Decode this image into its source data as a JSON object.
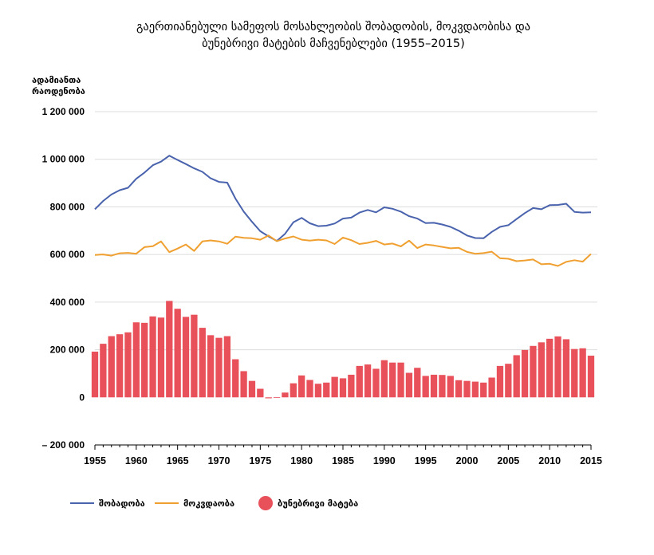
{
  "chart_data": {
    "type": "bar+line",
    "title_lines": [
      "გაერთიანებული სამეფოს მოსახლეობის შობადობის, მოკვდაობისა და",
      "ბუნებრივი მატების მაჩვენებლები (1955–2015)"
    ],
    "ylabel_lines": [
      "ადამიანთა",
      "რაოდენობა"
    ],
    "ylim": [
      -200000,
      1200000
    ],
    "yticks": [
      -200000,
      0,
      200000,
      400000,
      600000,
      800000,
      1000000,
      1200000
    ],
    "ytick_labels": [
      "– 200 000",
      "0",
      "200 000",
      "400 000",
      "600 000",
      "800 000",
      "1 000 000",
      "1 200 000"
    ],
    "xlim": [
      1955,
      2015
    ],
    "xticks": [
      1955,
      1960,
      1965,
      1970,
      1975,
      1980,
      1985,
      1990,
      1995,
      2000,
      2005,
      2010,
      2015
    ],
    "xtick_labels": [
      "1955",
      "1960",
      "1965",
      "1970",
      "1975",
      "1980",
      "1985",
      "1990",
      "1995",
      "2000",
      "2005",
      "2010",
      "2015"
    ],
    "grid": true,
    "legend_position": "bottom-left",
    "colors": {
      "births": "#4a63ad",
      "deaths": "#f0a030",
      "natural": "#e8505a",
      "grid": "#dcdcdc"
    },
    "years": [
      1955,
      1956,
      1957,
      1958,
      1959,
      1960,
      1961,
      1962,
      1963,
      1964,
      1965,
      1966,
      1967,
      1968,
      1969,
      1970,
      1971,
      1972,
      1973,
      1974,
      1975,
      1976,
      1977,
      1978,
      1979,
      1980,
      1981,
      1982,
      1983,
      1984,
      1985,
      1986,
      1987,
      1988,
      1989,
      1990,
      1991,
      1992,
      1993,
      1994,
      1995,
      1996,
      1997,
      1998,
      1999,
      2000,
      2001,
      2002,
      2003,
      2004,
      2005,
      2006,
      2007,
      2008,
      2009,
      2010,
      2011,
      2012,
      2013,
      2014,
      2015
    ],
    "series": [
      {
        "name": "შობადობა",
        "kind": "line",
        "values": [
          790000,
          825000,
          852000,
          870000,
          880000,
          918000,
          944000,
          975000,
          990000,
          1015000,
          997000,
          980000,
          962000,
          947000,
          920000,
          905000,
          902000,
          835000,
          780000,
          737000,
          698000,
          676000,
          657000,
          687000,
          735000,
          754000,
          731000,
          719000,
          721000,
          730000,
          751000,
          755000,
          776000,
          787000,
          777000,
          798000,
          792000,
          780000,
          761000,
          751000,
          732000,
          733000,
          726000,
          716000,
          700000,
          680000,
          669000,
          668000,
          695000,
          716000,
          723000,
          749000,
          774000,
          795000,
          790000,
          807000,
          808000,
          813000,
          779000,
          776000,
          777000
        ]
      },
      {
        "name": "მოკვდაობა",
        "kind": "line",
        "values": [
          598000,
          600000,
          595000,
          605000,
          607000,
          603000,
          631000,
          635000,
          655000,
          610000,
          625000,
          642000,
          615000,
          655000,
          659000,
          655000,
          645000,
          675000,
          670000,
          668000,
          662000,
          680000,
          656000,
          667000,
          676000,
          662000,
          658000,
          662000,
          659000,
          644000,
          671000,
          660000,
          644000,
          649000,
          657000,
          642000,
          646000,
          634000,
          658000,
          627000,
          642000,
          638000,
          632000,
          626000,
          628000,
          611000,
          603000,
          606000,
          612000,
          584000,
          582000,
          572000,
          575000,
          579000,
          559000,
          561000,
          552000,
          569000,
          576000,
          570000,
          602000
        ]
      },
      {
        "name": "ბუნებრივი მატება",
        "kind": "bar",
        "values": [
          192000,
          225000,
          257000,
          265000,
          273000,
          315000,
          313000,
          340000,
          335000,
          405000,
          372000,
          338000,
          347000,
          292000,
          261000,
          250000,
          257000,
          160000,
          110000,
          69000,
          36000,
          -4000,
          1000,
          20000,
          59000,
          92000,
          73000,
          57000,
          62000,
          86000,
          80000,
          95000,
          132000,
          138000,
          120000,
          156000,
          146000,
          146000,
          103000,
          124000,
          90000,
          95000,
          94000,
          90000,
          72000,
          69000,
          66000,
          62000,
          83000,
          132000,
          141000,
          177000,
          199000,
          216000,
          231000,
          246000,
          256000,
          244000,
          203000,
          206000,
          175000
        ]
      }
    ]
  }
}
